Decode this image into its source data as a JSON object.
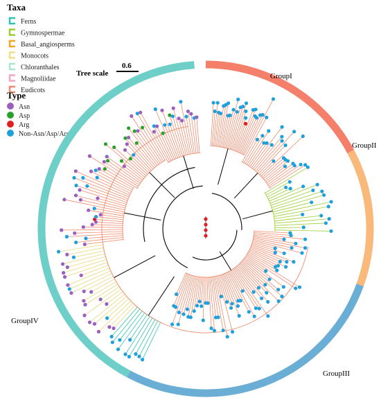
{
  "legend": {
    "taxa_title": "Taxa",
    "taxa": [
      {
        "label": "Ferns",
        "color": "#2ec4b0"
      },
      {
        "label": "Gymnospermae",
        "color": "#9acd32"
      },
      {
        "label": "Basal_angiosperms",
        "color": "#f5a623"
      },
      {
        "label": "Monocots",
        "color": "#f0e08a"
      },
      {
        "label": "Chloranthales",
        "color": "#a8e6cf"
      },
      {
        "label": "Magnoliidae",
        "color": "#f4a6c0"
      },
      {
        "label": "Eudicots",
        "color": "#f08a6c"
      }
    ],
    "type_title": "Type",
    "types": [
      {
        "label": "Asn",
        "color": "#9b5fc0"
      },
      {
        "label": "Asp",
        "color": "#2ca02c"
      },
      {
        "label": "Arg",
        "color": "#e02020"
      },
      {
        "label": "Non-Asn/Asp/Arg",
        "color": "#1ea0dc"
      }
    ]
  },
  "tree_scale": {
    "label": "Tree scale",
    "value": "0.6"
  },
  "groups": [
    {
      "name": "GroupI",
      "color": "#f47f6b"
    },
    {
      "name": "GroupII",
      "color": "#f9b97a"
    },
    {
      "name": "GroupIII",
      "color": "#6aaed6"
    },
    {
      "name": "GroupIV",
      "color": "#6dcfc7"
    }
  ],
  "branch_colors": {
    "main": "#f08a6c",
    "backbone": "#000000",
    "monocot": "#e8d87a",
    "gymno": "#9acd32",
    "fern": "#2ec4b0"
  }
}
